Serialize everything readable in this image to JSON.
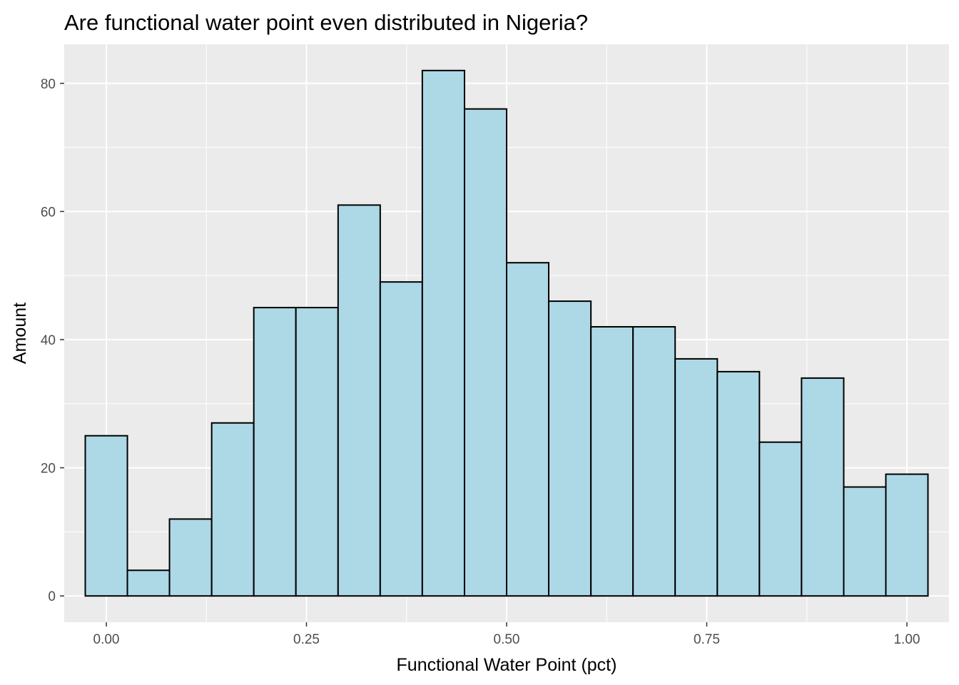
{
  "chart_data": {
    "type": "histogram",
    "title": "Are functional water point even distributed in Nigeria?",
    "xlabel": "Functional Water Point (pct)",
    "ylabel": "Amount",
    "xlim": [
      -0.0526,
      1.0526
    ],
    "ylim": [
      -4.1,
      86.1
    ],
    "x_ticks": [
      "0.00",
      "0.25",
      "0.50",
      "0.75",
      "1.00"
    ],
    "x_tick_values": [
      0,
      0.25,
      0.5,
      0.75,
      1.0
    ],
    "y_ticks": [
      "0",
      "20",
      "40",
      "60",
      "80"
    ],
    "y_tick_values": [
      0,
      20,
      40,
      60,
      80
    ],
    "bin_width": 0.0526,
    "bins": [
      {
        "x_min": -0.0263,
        "x_max": 0.0263,
        "count": 25
      },
      {
        "x_min": 0.0263,
        "x_max": 0.0789,
        "count": 4
      },
      {
        "x_min": 0.0789,
        "x_max": 0.1316,
        "count": 12
      },
      {
        "x_min": 0.1316,
        "x_max": 0.1842,
        "count": 27
      },
      {
        "x_min": 0.1842,
        "x_max": 0.2368,
        "count": 45
      },
      {
        "x_min": 0.2368,
        "x_max": 0.2895,
        "count": 45
      },
      {
        "x_min": 0.2895,
        "x_max": 0.3421,
        "count": 61
      },
      {
        "x_min": 0.3421,
        "x_max": 0.3947,
        "count": 49
      },
      {
        "x_min": 0.3947,
        "x_max": 0.4474,
        "count": 82
      },
      {
        "x_min": 0.4474,
        "x_max": 0.5,
        "count": 76
      },
      {
        "x_min": 0.5,
        "x_max": 0.5526,
        "count": 52
      },
      {
        "x_min": 0.5526,
        "x_max": 0.6053,
        "count": 46
      },
      {
        "x_min": 0.6053,
        "x_max": 0.6579,
        "count": 42
      },
      {
        "x_min": 0.6579,
        "x_max": 0.7105,
        "count": 42
      },
      {
        "x_min": 0.7105,
        "x_max": 0.7632,
        "count": 37
      },
      {
        "x_min": 0.7632,
        "x_max": 0.8158,
        "count": 35
      },
      {
        "x_min": 0.8158,
        "x_max": 0.8684,
        "count": 24
      },
      {
        "x_min": 0.8684,
        "x_max": 0.9211,
        "count": 34
      },
      {
        "x_min": 0.9211,
        "x_max": 0.9737,
        "count": 17
      },
      {
        "x_min": 0.9737,
        "x_max": 1.0263,
        "count": 19
      }
    ],
    "grid": true,
    "colors": {
      "panel_background": "#ebebeb",
      "grid_line": "#ffffff",
      "bar_fill": "#add8e6",
      "bar_outline": "#000000",
      "tick_text": "#4d4d4d",
      "tick_mark": "#333333"
    }
  }
}
